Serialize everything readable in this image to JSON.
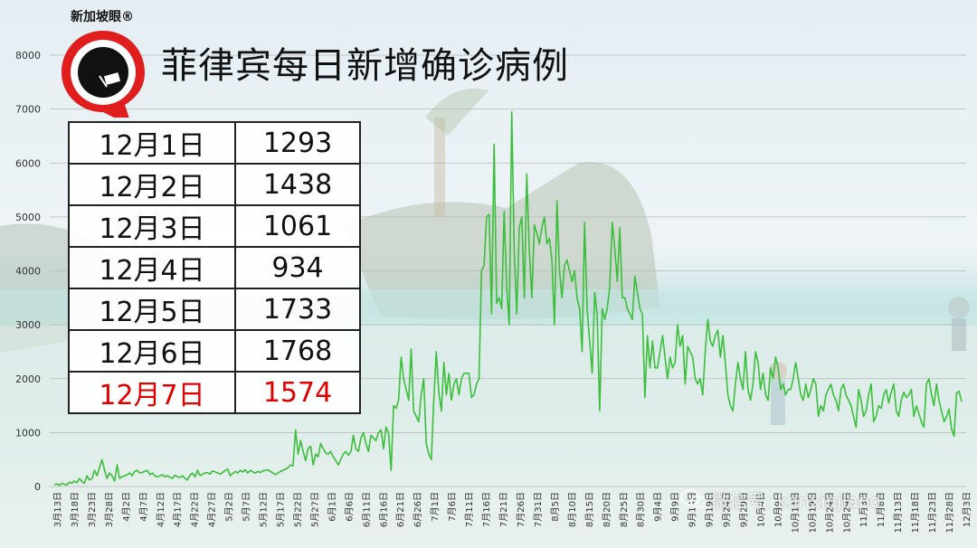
{
  "title": "菲律宾每日新增确诊病例",
  "logo": {
    "text": "新加坡眼®"
  },
  "watermark": "微信号: kanxinjiapo",
  "colors": {
    "line": "#3bbf3b",
    "highlight": "#e00000"
  },
  "table": {
    "rows": [
      {
        "date": "12月1日",
        "value": "1293"
      },
      {
        "date": "12月2日",
        "value": "1438"
      },
      {
        "date": "12月3日",
        "value": "1061"
      },
      {
        "date": "12月4日",
        "value": "934"
      },
      {
        "date": "12月5日",
        "value": "1733"
      },
      {
        "date": "12月6日",
        "value": "1768"
      },
      {
        "date": "12月7日",
        "value": "1574"
      }
    ]
  },
  "chart_data": {
    "type": "line",
    "title": "菲律宾每日新增确诊病例",
    "ylim": [
      0,
      8000
    ],
    "yticks": [
      0,
      1000,
      2000,
      3000,
      4000,
      5000,
      6000,
      7000,
      8000
    ],
    "grid": true,
    "x_tick_labels": [
      "3月13日",
      "3月18日",
      "3月23日",
      "3月28日",
      "4月2日",
      "4月7日",
      "4月12日",
      "4月17日",
      "4月22日",
      "4月27日",
      "5月2日",
      "5月7日",
      "5月12日",
      "5月17日",
      "5月22日",
      "5月27日",
      "6月1日",
      "6月6日",
      "6月11日",
      "6月16日",
      "6月21日",
      "6月26日",
      "7月1日",
      "7月6日",
      "7月11日",
      "7月16日",
      "7月21日",
      "7月26日",
      "7月31日",
      "8月5日",
      "8月10日",
      "8月15日",
      "8月20日",
      "8月25日",
      "8月30日",
      "9月4日",
      "9月9日",
      "9月14日",
      "9月19日",
      "9月24日",
      "9月29日",
      "10月4日",
      "10月9日",
      "10月14日",
      "10月19日",
      "10月24日",
      "10月29日",
      "11月3日",
      "11月8日",
      "11月13日",
      "11月18日",
      "11月23日",
      "11月28日",
      "12月3日"
    ],
    "series": [
      {
        "values": [
          30,
          50,
          20,
          60,
          40,
          30,
          80,
          60,
          100,
          70,
          150,
          90,
          60,
          200,
          120,
          150,
          300,
          200,
          350,
          500,
          300,
          150,
          250,
          200,
          100,
          400,
          150,
          180,
          200,
          220,
          250,
          200,
          280,
          300,
          250,
          260,
          280,
          300,
          220,
          250,
          200,
          180,
          200,
          220,
          180,
          200,
          170,
          150,
          210,
          180,
          170,
          200,
          150,
          120,
          210,
          250,
          180,
          300,
          200,
          230,
          250,
          260,
          230,
          290,
          270,
          250,
          230,
          260,
          300,
          320,
          200,
          240,
          280,
          250,
          300,
          270,
          310,
          250,
          300,
          270,
          250,
          280,
          260,
          290,
          300,
          310,
          280,
          250,
          220,
          250,
          280,
          300,
          320,
          350,
          400,
          380,
          1050,
          600,
          850,
          650,
          480,
          700,
          750,
          400,
          600,
          550,
          800,
          700,
          620,
          600,
          650,
          550,
          480,
          400,
          500,
          600,
          650,
          580,
          650,
          950,
          700,
          650,
          900,
          1000,
          800,
          650,
          950,
          900,
          850,
          1000,
          1050,
          700,
          1100,
          1000,
          300,
          1500,
          1450,
          1600,
          2400,
          2000,
          1800,
          1600,
          2550,
          1400,
          1300,
          1200,
          1700,
          2000,
          800,
          600,
          500,
          1600,
          2500,
          1750,
          1400,
          2300,
          1700,
          2100,
          1600,
          1900,
          2000,
          1700,
          2000,
          2100,
          2100,
          2100,
          1650,
          1700,
          1900,
          2000,
          4000,
          4100,
          5000,
          5050,
          3200,
          6350,
          3400,
          3500,
          3300,
          5100,
          3700,
          3000,
          6950,
          4400,
          3200,
          4800,
          5000,
          3500,
          5800,
          4400,
          3500,
          4850,
          4700,
          4500,
          4800,
          5000,
          4500,
          4600,
          4200,
          3000,
          5300,
          4000,
          3500,
          4100,
          4200,
          4000,
          3800,
          4000,
          3500,
          3300,
          2500,
          4900,
          3300,
          2700,
          2100,
          3600,
          3200,
          1400,
          3300,
          3100,
          3300,
          3700,
          4900,
          4400,
          3800,
          4800,
          3500,
          3500,
          3300,
          3200,
          3100,
          3900,
          3600,
          3300,
          3200,
          1650,
          2800,
          2200,
          2700,
          2200,
          2200,
          2500,
          2800,
          2400,
          2000,
          2400,
          2200,
          2300,
          3000,
          2600,
          2800,
          1900,
          2600,
          2500,
          2400,
          2000,
          1900,
          2000,
          1700,
          2500,
          3100,
          2700,
          2600,
          2800,
          2900,
          2400,
          2800,
          2300,
          1700,
          1500,
          1400,
          1900,
          2300,
          2000,
          1800,
          2500,
          1800,
          1600,
          1900,
          2500,
          2300,
          1800,
          2100,
          1700,
          1600,
          2200,
          2000,
          2400,
          2200,
          1800,
          1900,
          1700,
          1800,
          1800,
          2000,
          2300,
          2000,
          1700,
          1600,
          1900,
          1650,
          1800,
          2000,
          1900,
          1300,
          1500,
          1400,
          1700,
          1800,
          1900,
          1700,
          1600,
          1400,
          1800,
          1900,
          1700,
          1600,
          1500,
          1300,
          1100,
          1800,
          1600,
          1300,
          1400,
          1700,
          1900,
          1200,
          1300,
          1500,
          1450,
          1700,
          1800,
          1550,
          1750,
          1900,
          1400,
          1300,
          1600,
          1750,
          1650,
          1700,
          1800,
          1300,
          1500,
          1350,
          1200,
          1100,
          1900,
          2000,
          1700,
          1500,
          1900,
          1600,
          1400,
          1200,
          1293,
          1438,
          1061,
          934,
          1733,
          1768,
          1574
        ]
      }
    ]
  }
}
